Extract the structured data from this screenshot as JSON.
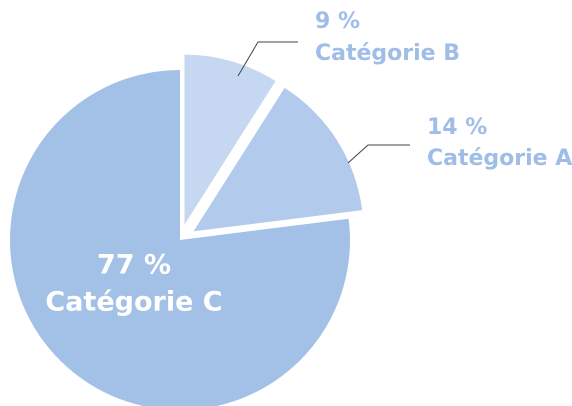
{
  "chart_data": {
    "type": "pie",
    "categories": [
      "Catégorie B",
      "Catégorie A",
      "Catégorie C"
    ],
    "values": [
      9,
      14,
      77
    ],
    "value_labels": [
      "9 %",
      "14 %",
      "77 %"
    ],
    "colors": [
      "#c6d7f1",
      "#b2cbec",
      "#a3c0e6"
    ]
  }
}
